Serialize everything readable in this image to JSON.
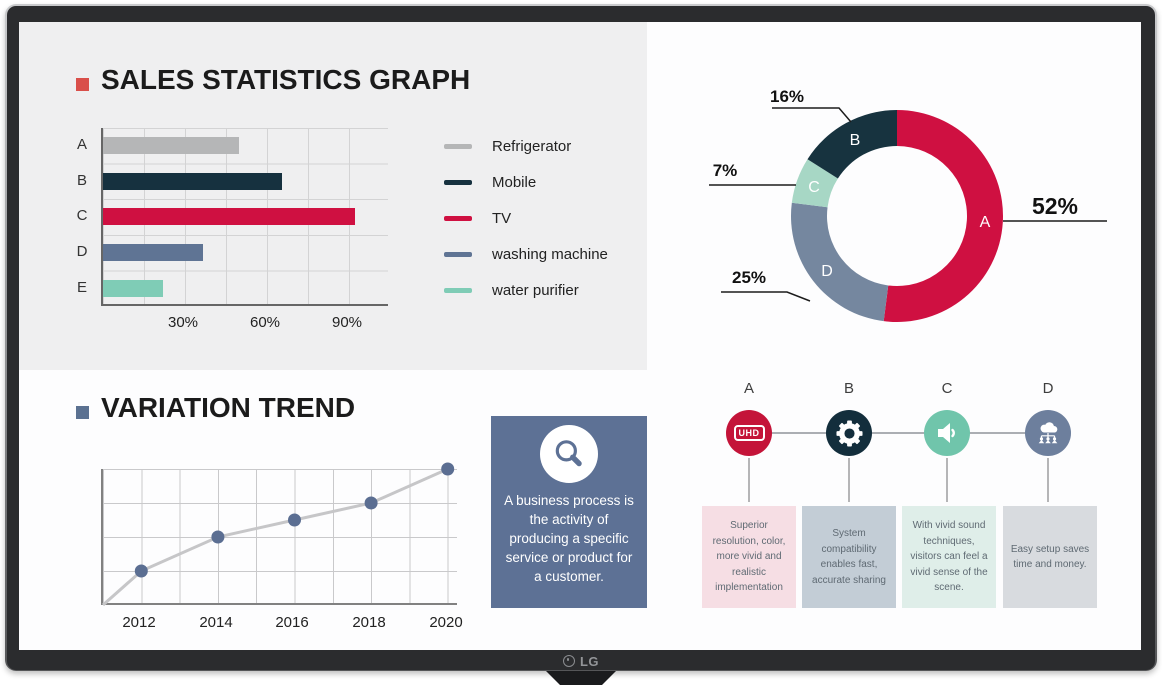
{
  "monitor": {
    "brand": "LG"
  },
  "sections": {
    "sales": {
      "title": "SALES STATISTICS GRAPH",
      "bullet_color": "#d94f4a"
    },
    "trend": {
      "title": "VARIATION TREND",
      "bullet_color": "#5b7191"
    }
  },
  "chart_data": [
    {
      "id": "sales-bar-chart",
      "type": "bar",
      "orientation": "horizontal",
      "categories": [
        "A",
        "B",
        "C",
        "D",
        "E"
      ],
      "values": [
        50,
        66,
        93,
        37,
        22
      ],
      "unit": "%",
      "xlim": [
        0,
        105
      ],
      "grid_step": 15,
      "xticks": [
        {
          "value": 30,
          "label": "30%"
        },
        {
          "value": 60,
          "label": "60%"
        },
        {
          "value": 90,
          "label": "90%"
        }
      ],
      "bar_colors": [
        "#b5b6b7",
        "#16313f",
        "#cf1041",
        "#5f7494",
        "#7fccb6"
      ],
      "legend_position": "right",
      "legend": [
        {
          "label": "Refrigerator",
          "color": "#b5b6b7"
        },
        {
          "label": "Mobile",
          "color": "#16313f"
        },
        {
          "label": "TV",
          "color": "#cf1041"
        },
        {
          "label": "washing machine",
          "color": "#5f7494"
        },
        {
          "label": "water purifier",
          "color": "#7fccb6"
        }
      ]
    },
    {
      "id": "category-share-donut",
      "type": "pie",
      "donut": true,
      "segments": [
        {
          "label": "A",
          "value": 52,
          "callout": "52%",
          "color": "#cf1041"
        },
        {
          "label": "B",
          "value": 16,
          "callout": "16%",
          "color": "#17333f"
        },
        {
          "label": "C",
          "value": 7,
          "callout": "7%",
          "color": "#a7d7c5"
        },
        {
          "label": "D",
          "value": 25,
          "callout": "25%",
          "color": "#75879f"
        }
      ],
      "clockwise_order_from_top": [
        "A",
        "D",
        "C",
        "B"
      ]
    },
    {
      "id": "variation-trend-line",
      "type": "line",
      "x": [
        2012,
        2014,
        2016,
        2018,
        2020
      ],
      "values": [
        1,
        2,
        2.5,
        3,
        4
      ],
      "ylim": [
        0,
        4
      ],
      "starts_at_origin": true,
      "grid": true,
      "xticks": [
        "2012",
        "2014",
        "2016",
        "2018",
        "2020"
      ],
      "line_color": "#c6c6c8",
      "point_color": "#5b6e92"
    }
  ],
  "info_box": {
    "icon": "magnifier",
    "background": "#5d7195",
    "text": "A business process is the activity of producing a specific service or product for a customer."
  },
  "process": {
    "steps": [
      {
        "letter": "A",
        "icon": "uhd-badge",
        "icon_label": "UHD",
        "circle_color": "#c41439",
        "card_color": "#f6dee4",
        "text": "Superior resolution, color, more vivid and realistic implementation"
      },
      {
        "letter": "B",
        "icon": "gear",
        "circle_color": "#132e3c",
        "card_color": "#c3cdd6",
        "text": "System compatibility enables fast, accurate sharing"
      },
      {
        "letter": "C",
        "icon": "speaker",
        "circle_color": "#70c5ab",
        "card_color": "#dfeee9",
        "text": "With vivid sound techniques, visitors can feel a vivid sense of the scene."
      },
      {
        "letter": "D",
        "icon": "cloud-network",
        "circle_color": "#6d7f9d",
        "card_color": "#d8dbdf",
        "text": "Easy setup saves time and money."
      }
    ]
  }
}
